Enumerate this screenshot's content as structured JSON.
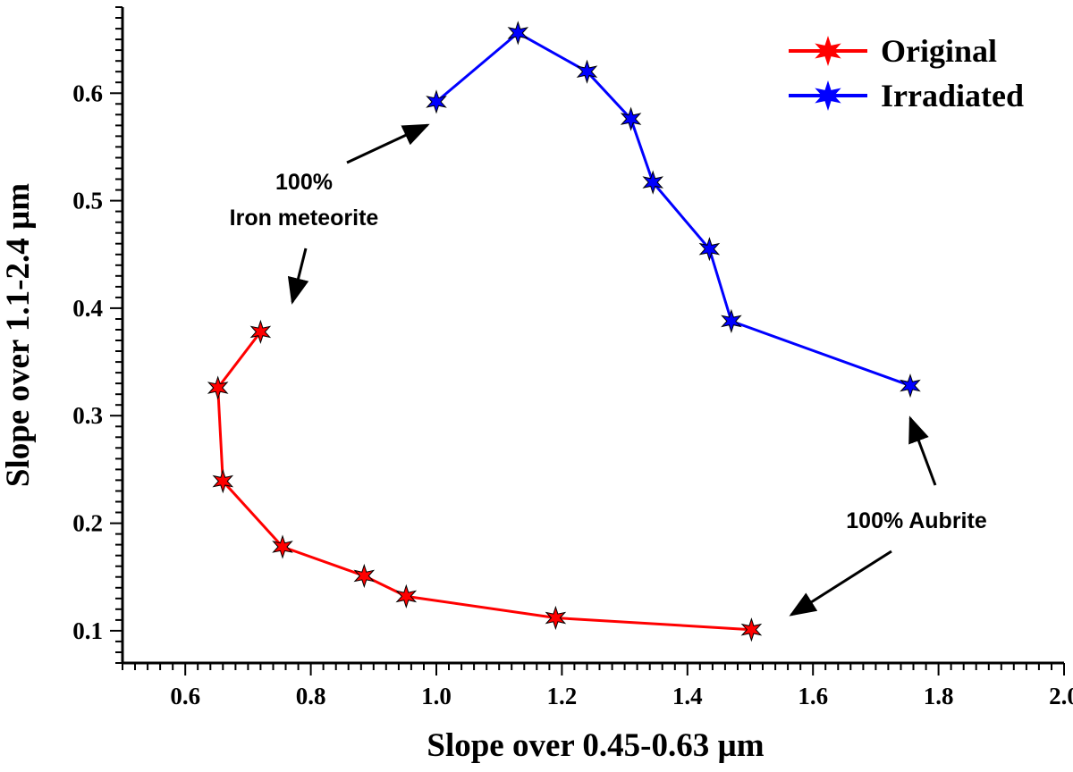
{
  "chart_data": {
    "type": "line",
    "title": "",
    "xlabel": "Slope over 0.45-0.63 µm",
    "ylabel": "Slope over 1.1-2.4 µm",
    "xlim": [
      0.5,
      2.0
    ],
    "ylim": [
      0.07,
      0.68
    ],
    "xticks": [
      0.6,
      0.8,
      1.0,
      1.2,
      1.4,
      1.6,
      1.8,
      2.0
    ],
    "xtick_labels": [
      "0.6",
      "0.8",
      "1.0",
      "1.2",
      "1.4",
      "1.6",
      "1.8",
      "2.0"
    ],
    "yticks": [
      0.1,
      0.2,
      0.3,
      0.4,
      0.5,
      0.6
    ],
    "ytick_labels": [
      "0.1",
      "0.2",
      "0.3",
      "0.4",
      "0.5",
      "0.6"
    ],
    "grid": false,
    "legend_position": "top-right",
    "series": [
      {
        "name": "Original",
        "color": "#ff0000",
        "marker": "star",
        "x": [
          0.72,
          0.652,
          0.66,
          0.755,
          0.885,
          0.952,
          1.19,
          1.502
        ],
        "y": [
          0.378,
          0.326,
          0.239,
          0.178,
          0.151,
          0.132,
          0.112,
          0.101
        ]
      },
      {
        "name": "Irradiated",
        "color": "#0000ff",
        "marker": "star",
        "x": [
          1.0,
          1.13,
          1.24,
          1.31,
          1.345,
          1.435,
          1.47,
          1.755
        ],
        "y": [
          0.592,
          0.656,
          0.62,
          0.576,
          0.517,
          0.455,
          0.388,
          0.328
        ]
      }
    ],
    "annotations": [
      {
        "lines": [
          "100%",
          "Iron meteorite"
        ]
      },
      {
        "lines": [
          "100% Aubrite"
        ]
      }
    ]
  }
}
